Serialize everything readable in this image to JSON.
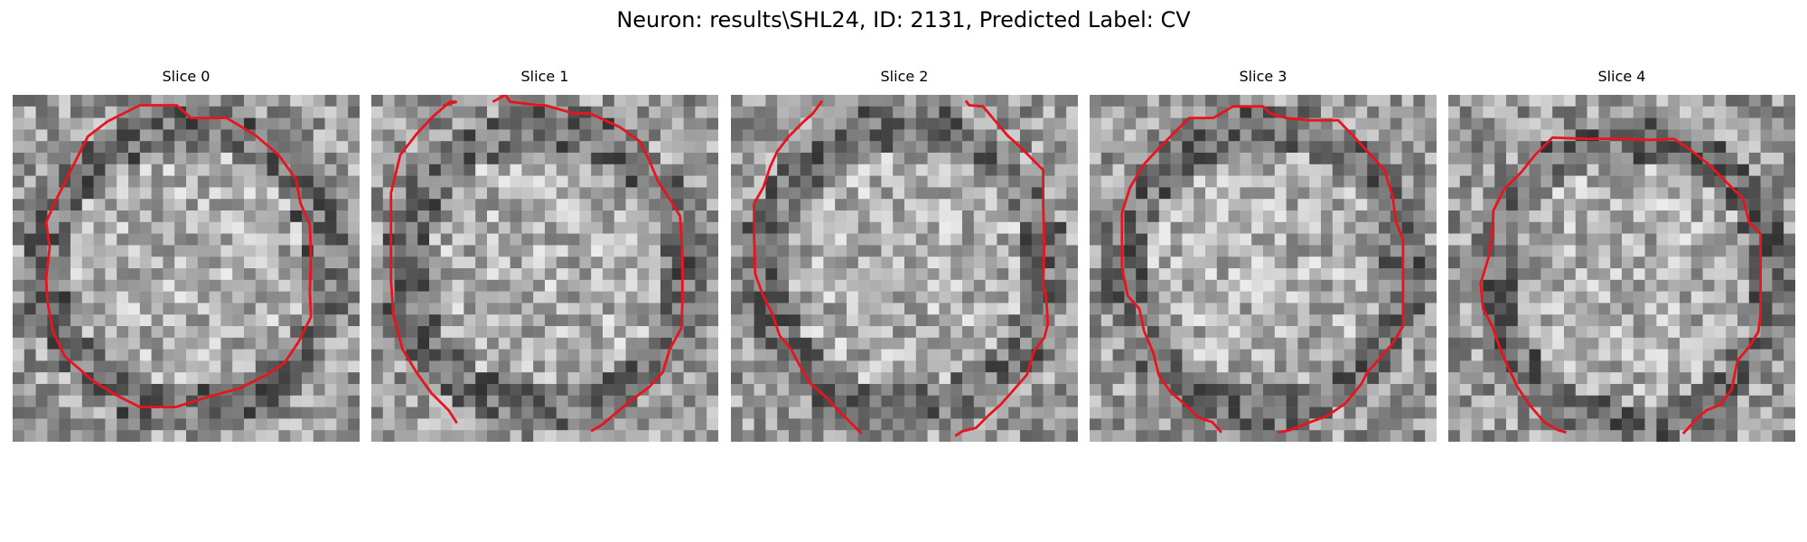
{
  "figure": {
    "title": "Neuron: results\\SHL24, ID: 2131, Predicted Label: CV"
  },
  "panels": [
    {
      "title": "Slice 0"
    },
    {
      "title": "Slice 1"
    },
    {
      "title": "Slice 2"
    },
    {
      "title": "Slice 3"
    },
    {
      "title": "Slice 4"
    }
  ],
  "colors": {
    "contour": "#e8141e",
    "background": "#ffffff"
  },
  "image_style": {
    "colormap": "grayscale",
    "noise": "pixelated"
  }
}
